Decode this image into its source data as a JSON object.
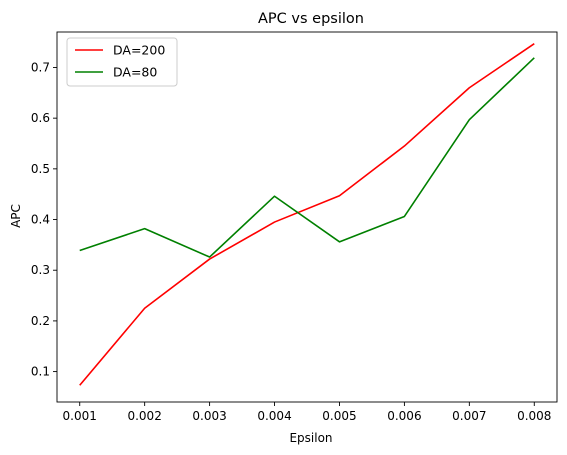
{
  "chart_data": {
    "type": "line",
    "title": "APC vs epsilon",
    "xlabel": "Epsilon",
    "ylabel": "APC",
    "x": [
      0.001,
      0.002,
      0.003,
      0.004,
      0.005,
      0.006,
      0.007,
      0.008
    ],
    "xticks": [
      "0.001",
      "0.002",
      "0.003",
      "0.004",
      "0.005",
      "0.006",
      "0.007",
      "0.008"
    ],
    "yticks": [
      "0.1",
      "0.2",
      "0.3",
      "0.4",
      "0.5",
      "0.6",
      "0.7"
    ],
    "ytick_values": [
      0.1,
      0.2,
      0.3,
      0.4,
      0.5,
      0.6,
      0.7
    ],
    "xlim": [
      0.00065,
      0.00835
    ],
    "ylim": [
      0.04,
      0.77
    ],
    "grid": false,
    "legend_position": "top-left",
    "series": [
      {
        "name": "DA=200",
        "color": "#ff0000",
        "values": [
          0.073,
          0.225,
          0.322,
          0.395,
          0.447,
          0.545,
          0.66,
          0.747
        ]
      },
      {
        "name": "DA=80",
        "color": "#008000",
        "values": [
          0.339,
          0.382,
          0.326,
          0.446,
          0.356,
          0.406,
          0.597,
          0.719
        ]
      }
    ]
  }
}
